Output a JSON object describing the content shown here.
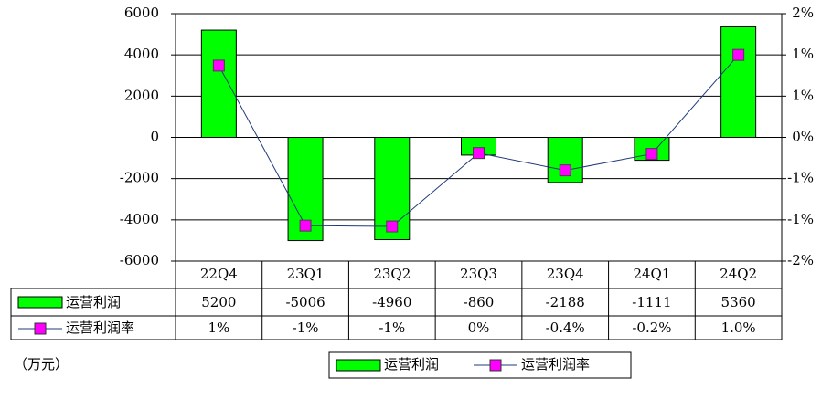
{
  "chart_data": {
    "type": "bar_line",
    "categories": [
      "22Q4",
      "23Q1",
      "23Q2",
      "23Q3",
      "23Q4",
      "24Q1",
      "24Q2"
    ],
    "series": [
      {
        "name": "运营利润",
        "color": "#00ff00",
        "values": [
          5200,
          -5006,
          -4960,
          -860,
          -2188,
          -1111,
          5360
        ]
      },
      {
        "name": "运营利润率",
        "color": "#ff00ff",
        "line_color": "#1f3a7a",
        "axis": "y2",
        "values": [
          0.87,
          -1.07,
          -1.08,
          -0.19,
          -0.4,
          -0.2,
          1.0
        ],
        "value_labels": [
          "1%",
          "-1%",
          "-1%",
          "0%",
          "-0.4%",
          "-0.2%",
          "1.0%"
        ]
      }
    ],
    "ylim": [
      -6000,
      6000
    ],
    "yticks": [
      6000,
      4000,
      2000,
      0,
      -2000,
      -4000,
      -6000
    ],
    "y2lim": [
      -1.5,
      1.5
    ],
    "y2ticks": [
      {
        "value": 1.5,
        "label": "2%"
      },
      {
        "value": 1,
        "label": "1%"
      },
      {
        "value": 0.5,
        "label": "1%"
      },
      {
        "value": 0,
        "label": "0%"
      },
      {
        "value": -0.5,
        "label": "-1%"
      },
      {
        "value": -1,
        "label": "-1%"
      },
      {
        "value": -1.5,
        "label": "-2%"
      }
    ],
    "grid": true,
    "unit": "（万元）"
  }
}
